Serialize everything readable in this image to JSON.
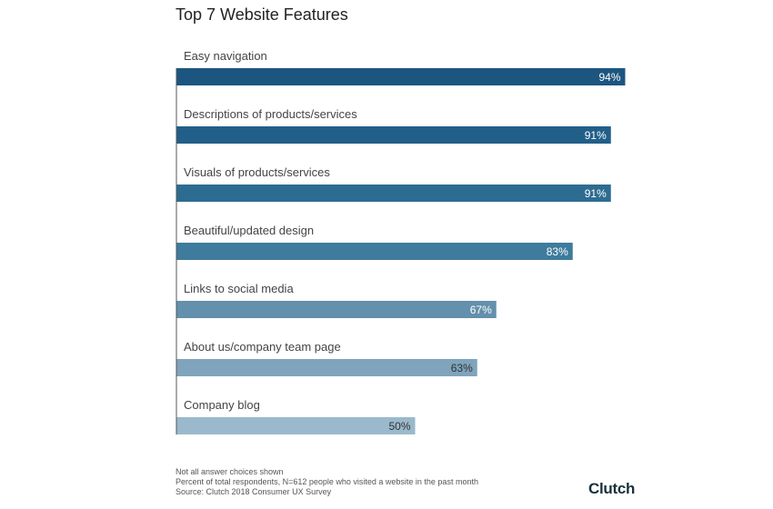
{
  "chart_data": {
    "type": "bar",
    "orientation": "horizontal",
    "title": "Top 7 Website Features",
    "categories": [
      "Easy navigation",
      "Descriptions of products/services",
      "Visuals of products/services",
      "Beautiful/updated design",
      "Links to social media",
      "About us/company team page",
      "Company blog"
    ],
    "values": [
      94,
      91,
      91,
      83,
      67,
      63,
      50
    ],
    "value_labels": [
      "94%",
      "91%",
      "91%",
      "83%",
      "67%",
      "63%",
      "50%"
    ],
    "xlim": [
      0,
      100
    ],
    "grid": false,
    "bar_colors": [
      "#1c5680",
      "#225f88",
      "#2d6c91",
      "#3e7b9d",
      "#6390ac",
      "#7fa4bc",
      "#9bb9cc"
    ],
    "label_colors": [
      "#ffffff",
      "#ffffff",
      "#ffffff",
      "#ffffff",
      "#ffffff",
      "#333333",
      "#333333"
    ]
  },
  "footnotes": [
    "Not all answer choices shown",
    "Percent of total respondents, N=612 people who visited a website in the past month",
    "Source: Clutch 2018 Consumer UX Survey"
  ],
  "logo": "Clutch"
}
